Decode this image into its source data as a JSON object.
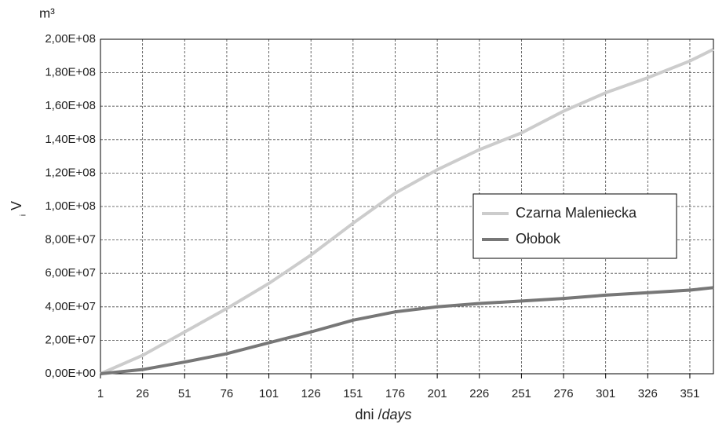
{
  "chart_data": {
    "type": "line",
    "unit": "m³",
    "y_label": "V",
    "y_label_sub": "i",
    "x_label": "dni / ",
    "x_label_italic": "days",
    "x": [
      1,
      26,
      51,
      76,
      101,
      126,
      151,
      176,
      201,
      226,
      251,
      276,
      301,
      326,
      351,
      365
    ],
    "series": [
      {
        "name": "Czarna Maleniecka",
        "color": "#cccccc",
        "values": [
          0,
          11000000,
          25000000,
          39000000,
          54000000,
          71000000,
          90000000,
          108000000,
          122000000,
          134000000,
          144000000,
          157000000,
          168000000,
          177000000,
          187000000,
          194000000
        ]
      },
      {
        "name": "Ołobok",
        "color": "#777777",
        "values": [
          0,
          2500000,
          7000000,
          12000000,
          18500000,
          25000000,
          32000000,
          37000000,
          40000000,
          42000000,
          43500000,
          45000000,
          47000000,
          48500000,
          50000000,
          51500000
        ]
      }
    ],
    "xlim": [
      1,
      365
    ],
    "xticks": [
      1,
      26,
      51,
      76,
      101,
      126,
      151,
      176,
      201,
      226,
      251,
      276,
      301,
      326,
      351
    ],
    "ylim": [
      0,
      200000000
    ],
    "yticks": [
      {
        "value": 0,
        "label": "0,00E+00"
      },
      {
        "value": 20000000,
        "label": "2,00E+07"
      },
      {
        "value": 40000000,
        "label": "4,00E+07"
      },
      {
        "value": 60000000,
        "label": "6,00E+07"
      },
      {
        "value": 80000000,
        "label": "8,00E+07"
      },
      {
        "value": 100000000,
        "label": "1,00E+08"
      },
      {
        "value": 120000000,
        "label": "1,20E+08"
      },
      {
        "value": 140000000,
        "label": "1,40E+08"
      },
      {
        "value": 160000000,
        "label": "1,60E+08"
      },
      {
        "value": 180000000,
        "label": "1,80E+08"
      },
      {
        "value": 200000000,
        "label": "2,00E+08"
      }
    ],
    "grid": true,
    "legend": "right"
  }
}
